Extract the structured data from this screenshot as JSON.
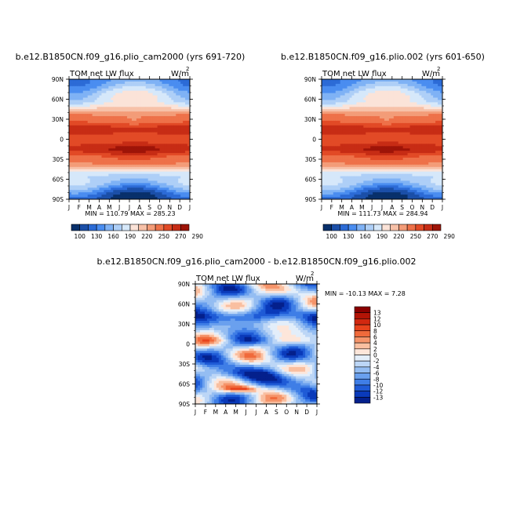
{
  "panels": [
    {
      "title": "b.e12.B1850CN.f09_g16.plio_cam2000 (yrs 691-720)",
      "subtitle_left": "TOM net LW flux",
      "units": "W/m",
      "units_sup": "2",
      "stats": "MIN = 110.79 MAX = 285.23"
    },
    {
      "title": "b.e12.B1850CN.f09_g16.plio.002 (yrs 601-650)",
      "subtitle_left": "TOM net LW flux",
      "units": "W/m",
      "units_sup": "2",
      "stats": "MIN = 111.73 MAX = 284.94"
    },
    {
      "title": "b.e12.B1850CN.f09_g16.plio_cam2000 - b.e12.B1850CN.f09_g16.plio.002",
      "subtitle_left": "TOM net LW flux",
      "units": "W/m",
      "units_sup": "2",
      "stats": "MIN = -10.13 MAX =    7.28"
    }
  ],
  "axis": {
    "x_ticks": [
      "J",
      "F",
      "M",
      "A",
      "M",
      "J",
      "J",
      "A",
      "S",
      "O",
      "N",
      "D",
      "J"
    ],
    "y_ticks": [
      "90N",
      "60N",
      "30N",
      "0",
      "30S",
      "60S",
      "90S"
    ]
  },
  "colorbar_top": {
    "labels": [
      "100",
      "130",
      "160",
      "190",
      "220",
      "250",
      "270",
      "290"
    ],
    "colors": [
      "#08306b",
      "#1b4fa8",
      "#2c6bd6",
      "#4a8df0",
      "#7fb2f5",
      "#aecff7",
      "#d6e8fa",
      "#fbe3d8",
      "#f7c1a8",
      "#f39c78",
      "#ee7149",
      "#e24a26",
      "#c72c15",
      "#9e1408"
    ]
  },
  "colorbar_diff": {
    "labels": [
      "13",
      "12",
      "10",
      "8",
      "6",
      "4",
      "2",
      "0",
      "-2",
      "-4",
      "-6",
      "-8",
      "-10",
      "-12",
      "-13"
    ],
    "colors": [
      "#8a0000",
      "#b31406",
      "#d22810",
      "#e8431c",
      "#f06a3b",
      "#f5946a",
      "#f9bfa0",
      "#fde6da",
      "#e3eefa",
      "#bcd6f6",
      "#94bdf2",
      "#6aa0ee",
      "#3f7ee6",
      "#1f5bd6",
      "#0a3aba",
      "#04208c"
    ]
  },
  "chart_data": [
    {
      "type": "heatmap",
      "title": "b.e12.B1850CN.f09_g16.plio_cam2000 (yrs 691-720)",
      "xlabel": "",
      "ylabel": "",
      "x": [
        "J",
        "F",
        "M",
        "A",
        "M",
        "J",
        "J",
        "A",
        "S",
        "O",
        "N",
        "D",
        "J"
      ],
      "y": [
        90,
        60,
        30,
        0,
        -30,
        -60,
        -90
      ],
      "zlim": [
        100,
        290
      ],
      "min": 110.79,
      "max": 285.23,
      "months": [
        "J",
        "F",
        "M",
        "A",
        "M",
        "J",
        "J",
        "A",
        "S",
        "O",
        "N",
        "D",
        "J"
      ],
      "lat_profile_deg": [
        -90,
        -60,
        -30,
        -15,
        0,
        15,
        30,
        60,
        90
      ],
      "lat_profile_val": [
        120,
        175,
        245,
        275,
        255,
        270,
        240,
        190,
        150
      ]
    },
    {
      "type": "heatmap",
      "title": "b.e12.B1850CN.f09_g16.plio.002 (yrs 601-650)",
      "xlabel": "",
      "ylabel": "",
      "x": [
        "J",
        "F",
        "M",
        "A",
        "M",
        "J",
        "J",
        "A",
        "S",
        "O",
        "N",
        "D",
        "J"
      ],
      "y": [
        90,
        60,
        30,
        0,
        -30,
        -60,
        -90
      ],
      "zlim": [
        100,
        290
      ],
      "min": 111.73,
      "max": 284.94,
      "months": [
        "J",
        "F",
        "M",
        "A",
        "M",
        "J",
        "J",
        "A",
        "S",
        "O",
        "N",
        "D",
        "J"
      ],
      "lat_profile_deg": [
        -90,
        -60,
        -30,
        -15,
        0,
        15,
        30,
        60,
        90
      ],
      "lat_profile_val": [
        121,
        175,
        245,
        274,
        255,
        270,
        240,
        190,
        151
      ]
    },
    {
      "type": "heatmap",
      "title": "b.e12.B1850CN.f09_g16.plio_cam2000 - b.e12.B1850CN.f09_g16.plio.002",
      "xlabel": "",
      "ylabel": "",
      "x": [
        "J",
        "F",
        "M",
        "A",
        "M",
        "J",
        "J",
        "A",
        "S",
        "O",
        "N",
        "D",
        "J"
      ],
      "y": [
        90,
        60,
        30,
        0,
        -30,
        -60,
        -90
      ],
      "zlim": [
        -13,
        13
      ],
      "min": -10.13,
      "max": 7.28
    }
  ]
}
